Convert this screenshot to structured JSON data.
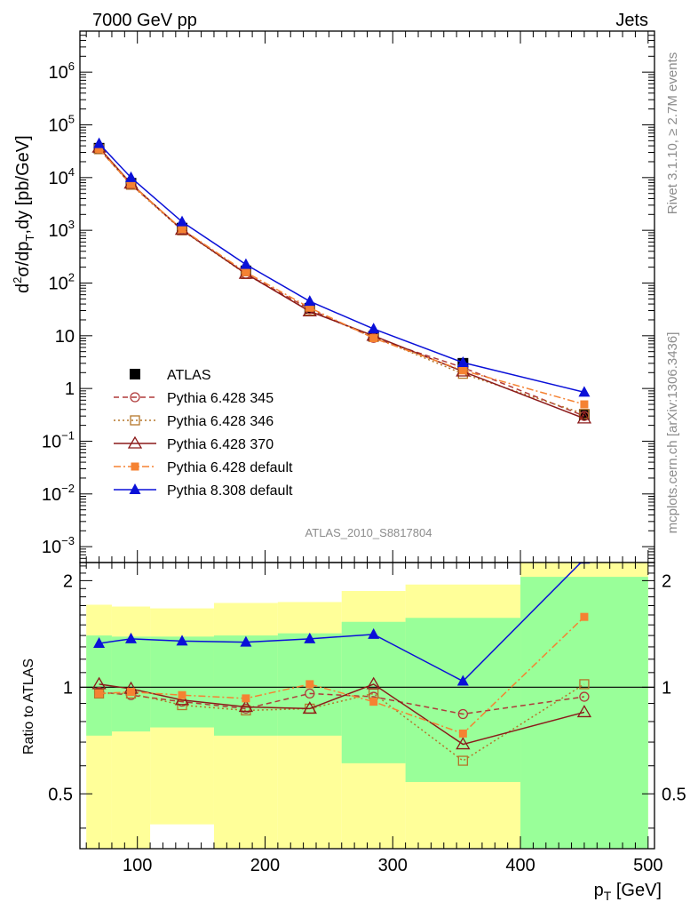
{
  "header": {
    "left_label": "7000 GeV pp",
    "right_label": "Jets"
  },
  "side_text": {
    "rivet": "Rivet 3.1.10, ≥ 2.7M events",
    "mcplots": "mcplots.cern.ch [arXiv:1306.3436]"
  },
  "watermark": "ATLAS_2010_S8817804",
  "chart_data": [
    {
      "type": "line",
      "panel": "main",
      "xlabel": "p_T [GeV]",
      "ylabel": "d²σ/dp_T,dy [pb/GeV]",
      "ylabel_parts": {
        "d": "d",
        "sup2": "2",
        "sigma": "σ/dp",
        "subT": "T",
        "rest": ",dy [pb/GeV]"
      },
      "log_y": true,
      "xlim": [
        55,
        505
      ],
      "ylim": [
        0.0005,
        6000000
      ],
      "y_ticks": [
        {
          "v": 0.001,
          "base": "10",
          "exp": "−3"
        },
        {
          "v": 0.01,
          "base": "10",
          "exp": "−2"
        },
        {
          "v": 0.1,
          "base": "10",
          "exp": "−1"
        },
        {
          "v": 1,
          "base": "1",
          "exp": ""
        },
        {
          "v": 10,
          "base": "10",
          "exp": ""
        },
        {
          "v": 100,
          "base": "10",
          "exp": "2"
        },
        {
          "v": 1000,
          "base": "10",
          "exp": "3"
        },
        {
          "v": 10000,
          "base": "10",
          "exp": "4"
        },
        {
          "v": 100000,
          "base": "10",
          "exp": "5"
        },
        {
          "v": 1000000,
          "base": "10",
          "exp": "6"
        }
      ],
      "x": [
        70,
        95,
        135,
        185,
        235,
        285,
        355,
        450
      ],
      "legend_position": "bottom-left",
      "series": [
        {
          "name": "ATLAS",
          "color": "#000000",
          "marker": "square-filled",
          "values": [
            36000,
            7800,
            1100,
            170,
            33,
            9.8,
            3.0,
            0.32
          ]
        },
        {
          "name": "Pythia 6.428 345",
          "color": "#b03a3a",
          "marker": "circle-open",
          "dash": "6,4",
          "values": [
            35000,
            7400,
            1030,
            150,
            32,
            9.1,
            2.5,
            0.3
          ]
        },
        {
          "name": "Pythia 6.428 346",
          "color": "#b5762a",
          "marker": "square-open",
          "dash": "2,3",
          "values": [
            34500,
            7300,
            1000,
            148,
            30,
            9.5,
            1.9,
            0.33
          ]
        },
        {
          "name": "Pythia 6.428 370",
          "color": "#8b1a1a",
          "marker": "triangle-open",
          "dash": "",
          "values": [
            37000,
            7700,
            1020,
            150,
            29,
            10.0,
            2.1,
            0.27
          ]
        },
        {
          "name": "Pythia 6.428 default",
          "color": "#f58232",
          "marker": "square-filled-small",
          "dash": "8,3,2,3",
          "values": [
            35000,
            7500,
            1050,
            160,
            34,
            9.0,
            2.2,
            0.5
          ]
        },
        {
          "name": "Pythia 8.308 default",
          "color": "#0a10d8",
          "marker": "triangle-filled",
          "dash": "",
          "values": [
            44000,
            10000,
            1450,
            225,
            45,
            13.5,
            3.1,
            0.85
          ]
        }
      ]
    },
    {
      "type": "line",
      "panel": "ratio",
      "xlabel": "p_T [GeV]",
      "ylabel": "Ratio to ATLAS",
      "xlim": [
        55,
        505
      ],
      "ylim": [
        0.35,
        2.25
      ],
      "x_ticks": [
        100,
        200,
        300,
        400,
        500
      ],
      "y_ticks": [
        0.5,
        1,
        2
      ],
      "y_tick_labels": [
        "0.5",
        "1",
        "2"
      ],
      "x": [
        70,
        95,
        135,
        185,
        235,
        285,
        355,
        450
      ],
      "bin_edges": [
        60,
        80,
        110,
        160,
        210,
        260,
        310,
        400,
        500
      ],
      "green_band": {
        "lo": [
          0.73,
          0.75,
          0.77,
          0.73,
          0.73,
          0.61,
          0.54,
          0.35
        ],
        "hi": [
          1.4,
          1.39,
          1.39,
          1.4,
          1.42,
          1.53,
          1.57,
          2.05
        ]
      },
      "yellow_band": {
        "lo": [
          0.35,
          0.35,
          0.35,
          0.35,
          0.35,
          0.35,
          0.35,
          0.35
        ],
        "hi": [
          1.71,
          1.69,
          1.67,
          1.73,
          1.74,
          1.87,
          1.95,
          2.25
        ]
      },
      "white_gap": {
        "x": [
          110,
          160
        ],
        "hi": 0.41
      },
      "series": [
        {
          "name": "Pythia 6.428 345",
          "color": "#b03a3a",
          "marker": "circle-open",
          "dash": "6,4",
          "values": [
            0.97,
            0.95,
            0.91,
            0.87,
            0.96,
            0.94,
            0.84,
            0.94
          ]
        },
        {
          "name": "Pythia 6.428 346",
          "color": "#b5762a",
          "marker": "square-open",
          "dash": "2,3",
          "values": [
            0.96,
            0.96,
            0.89,
            0.86,
            0.87,
            0.96,
            0.62,
            1.02
          ]
        },
        {
          "name": "Pythia 6.428 370",
          "color": "#8b1a1a",
          "marker": "triangle-open",
          "dash": "",
          "values": [
            1.02,
            0.99,
            0.92,
            0.88,
            0.87,
            1.02,
            0.69,
            0.85
          ]
        },
        {
          "name": "Pythia 6.428 default",
          "color": "#f58232",
          "marker": "square-filled-small",
          "dash": "8,3,2,3",
          "values": [
            0.96,
            0.97,
            0.95,
            0.93,
            1.02,
            0.91,
            0.74,
            1.58
          ]
        },
        {
          "name": "Pythia 8.308 default",
          "color": "#0a10d8",
          "marker": "triangle-filled",
          "dash": "",
          "values": [
            1.33,
            1.37,
            1.35,
            1.34,
            1.37,
            1.41,
            1.04,
            2.3
          ]
        }
      ]
    }
  ]
}
